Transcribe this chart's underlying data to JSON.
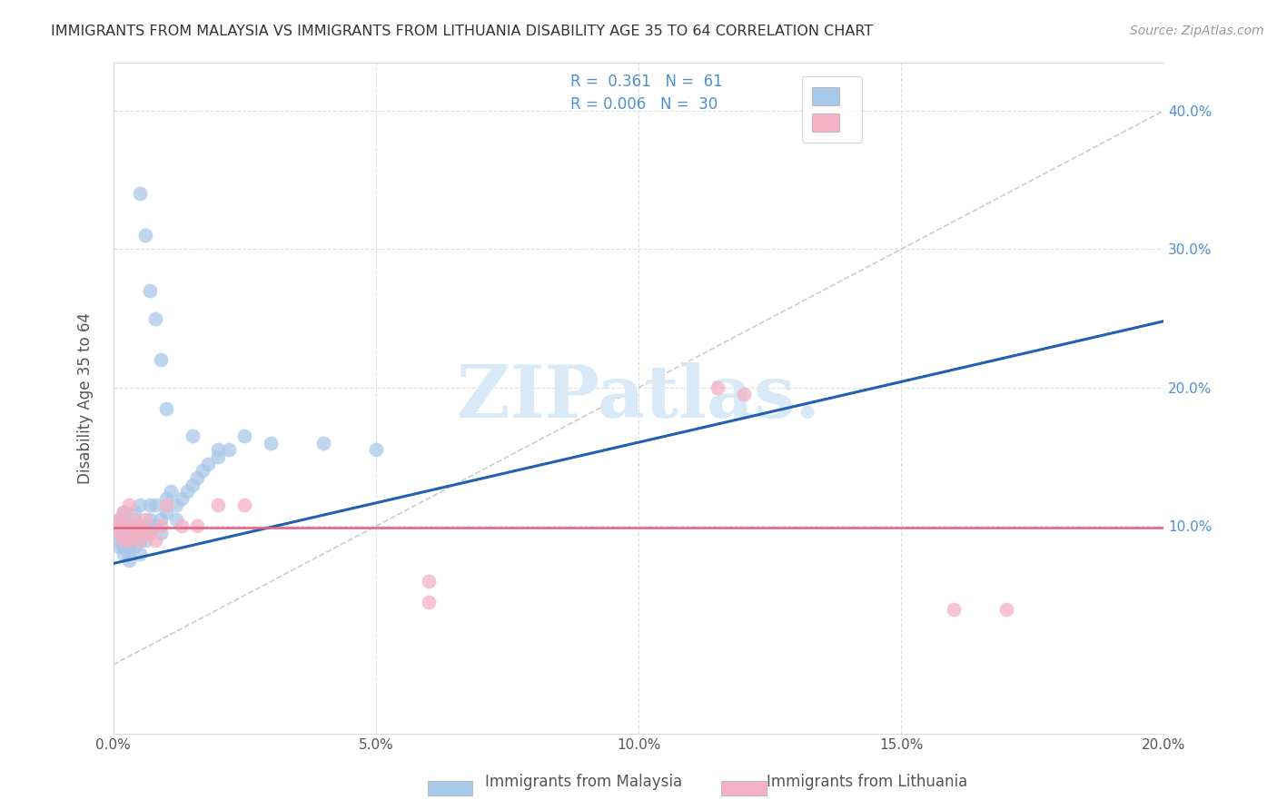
{
  "title": "IMMIGRANTS FROM MALAYSIA VS IMMIGRANTS FROM LITHUANIA DISABILITY AGE 35 TO 64 CORRELATION CHART",
  "source": "Source: ZipAtlas.com",
  "ylabel": "Disability Age 35 to 64",
  "xlim": [
    0.0,
    0.2
  ],
  "ylim": [
    -0.05,
    0.435
  ],
  "malaysia_R": 0.361,
  "malaysia_N": 61,
  "lithuania_R": 0.006,
  "lithuania_N": 30,
  "malaysia_color": "#a8c8e8",
  "malaysia_edge": "#7aaed4",
  "lithuania_color": "#f4b0c4",
  "lithuania_edge": "#e08090",
  "malaysia_line_color": "#2060b0",
  "lithuania_line_color": "#e06080",
  "diag_color": "#cccccc",
  "grid_color": "#e0e0e0",
  "right_tick_color": "#5090d0",
  "watermark_color": "#d8eaf8",
  "malaysia_x": [
    0.001,
    0.001,
    0.001,
    0.001,
    0.001,
    0.002,
    0.002,
    0.002,
    0.002,
    0.002,
    0.002,
    0.003,
    0.003,
    0.003,
    0.003,
    0.003,
    0.003,
    0.004,
    0.004,
    0.004,
    0.004,
    0.004,
    0.005,
    0.005,
    0.005,
    0.005,
    0.006,
    0.006,
    0.006,
    0.007,
    0.007,
    0.007,
    0.008,
    0.008,
    0.009,
    0.009,
    0.01,
    0.01,
    0.011,
    0.012,
    0.012,
    0.013,
    0.014,
    0.015,
    0.016,
    0.017,
    0.018,
    0.02,
    0.022,
    0.025,
    0.005,
    0.006,
    0.007,
    0.008,
    0.009,
    0.01,
    0.015,
    0.02,
    0.03,
    0.04,
    0.05
  ],
  "malaysia_y": [
    0.105,
    0.095,
    0.085,
    0.09,
    0.1,
    0.08,
    0.09,
    0.095,
    0.105,
    0.11,
    0.085,
    0.08,
    0.09,
    0.095,
    0.1,
    0.085,
    0.075,
    0.09,
    0.1,
    0.095,
    0.085,
    0.11,
    0.08,
    0.09,
    0.1,
    0.115,
    0.09,
    0.1,
    0.095,
    0.095,
    0.105,
    0.115,
    0.1,
    0.115,
    0.095,
    0.105,
    0.11,
    0.12,
    0.125,
    0.115,
    0.105,
    0.12,
    0.125,
    0.13,
    0.135,
    0.14,
    0.145,
    0.15,
    0.155,
    0.165,
    0.34,
    0.31,
    0.27,
    0.25,
    0.22,
    0.185,
    0.165,
    0.155,
    0.16,
    0.16,
    0.155
  ],
  "lithuania_x": [
    0.001,
    0.001,
    0.001,
    0.002,
    0.002,
    0.002,
    0.003,
    0.003,
    0.003,
    0.004,
    0.004,
    0.004,
    0.005,
    0.005,
    0.006,
    0.006,
    0.007,
    0.008,
    0.009,
    0.01,
    0.013,
    0.016,
    0.02,
    0.025,
    0.06,
    0.06,
    0.115,
    0.12,
    0.16,
    0.17
  ],
  "lithuania_y": [
    0.095,
    0.1,
    0.105,
    0.09,
    0.1,
    0.11,
    0.09,
    0.1,
    0.115,
    0.095,
    0.105,
    0.095,
    0.09,
    0.1,
    0.095,
    0.105,
    0.095,
    0.09,
    0.1,
    0.115,
    0.1,
    0.1,
    0.115,
    0.115,
    0.045,
    0.06,
    0.2,
    0.195,
    0.04,
    0.04
  ],
  "mal_line_x0": 0.0,
  "mal_line_y0": 0.073,
  "mal_line_x1": 0.2,
  "mal_line_y1": 0.248,
  "lit_line_x0": 0.0,
  "lit_line_y0": 0.099,
  "lit_line_x1": 0.2,
  "lit_line_y1": 0.099
}
